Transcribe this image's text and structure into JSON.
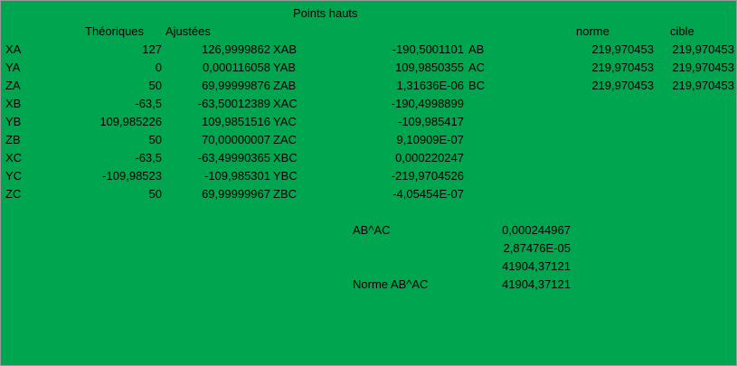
{
  "title": "Points hauts",
  "headers": {
    "theoriques": "Théoriques",
    "ajustees": "Ajustées",
    "norme": "norme",
    "cible": "cible"
  },
  "rows": [
    {
      "name": "XA",
      "theo": "127",
      "adj": "126,9999862",
      "vname": "XAB",
      "vval": "-190,5001101",
      "seg": "AB",
      "norme": "219,970453",
      "cible": "219,970453"
    },
    {
      "name": "YA",
      "theo": "0",
      "adj": "0,000116058",
      "vname": "YAB",
      "vval": "109,9850355",
      "seg": "AC",
      "norme": "219,970453",
      "cible": "219,970453"
    },
    {
      "name": "ZA",
      "theo": "50",
      "adj": "69,99999876",
      "vname": "ZAB",
      "vval": "1,31636E-06",
      "seg": "BC",
      "norme": "219,970453",
      "cible": "219,970453"
    },
    {
      "name": "XB",
      "theo": "-63,5",
      "adj": "-63,50012389",
      "vname": "XAC",
      "vval": "-190,4998899",
      "seg": "",
      "norme": "",
      "cible": ""
    },
    {
      "name": "YB",
      "theo": "109,985226",
      "adj": "109,9851516",
      "vname": "YAC",
      "vval": "-109,985417",
      "seg": "",
      "norme": "",
      "cible": ""
    },
    {
      "name": "ZB",
      "theo": "50",
      "adj": "70,00000007",
      "vname": "ZAC",
      "vval": "9,10909E-07",
      "seg": "",
      "norme": "",
      "cible": ""
    },
    {
      "name": "XC",
      "theo": "-63,5",
      "adj": "-63,49990365",
      "vname": "XBC",
      "vval": "0,000220247",
      "seg": "",
      "norme": "",
      "cible": ""
    },
    {
      "name": "YC",
      "theo": "-109,98523",
      "adj": "-109,985301",
      "vname": "YBC",
      "vval": "-219,9704526",
      "seg": "",
      "norme": "",
      "cible": ""
    },
    {
      "name": "ZC",
      "theo": "50",
      "adj": "69,99999967",
      "vname": "ZBC",
      "vval": "-4,05454E-07",
      "seg": "",
      "norme": "",
      "cible": ""
    }
  ],
  "cross": {
    "label": "AB^AC",
    "values": [
      "0,000244967",
      "2,87476E-05",
      "41904,37121"
    ],
    "norm_label": "Norme AB^AC",
    "norm_value": "41904,37121"
  }
}
